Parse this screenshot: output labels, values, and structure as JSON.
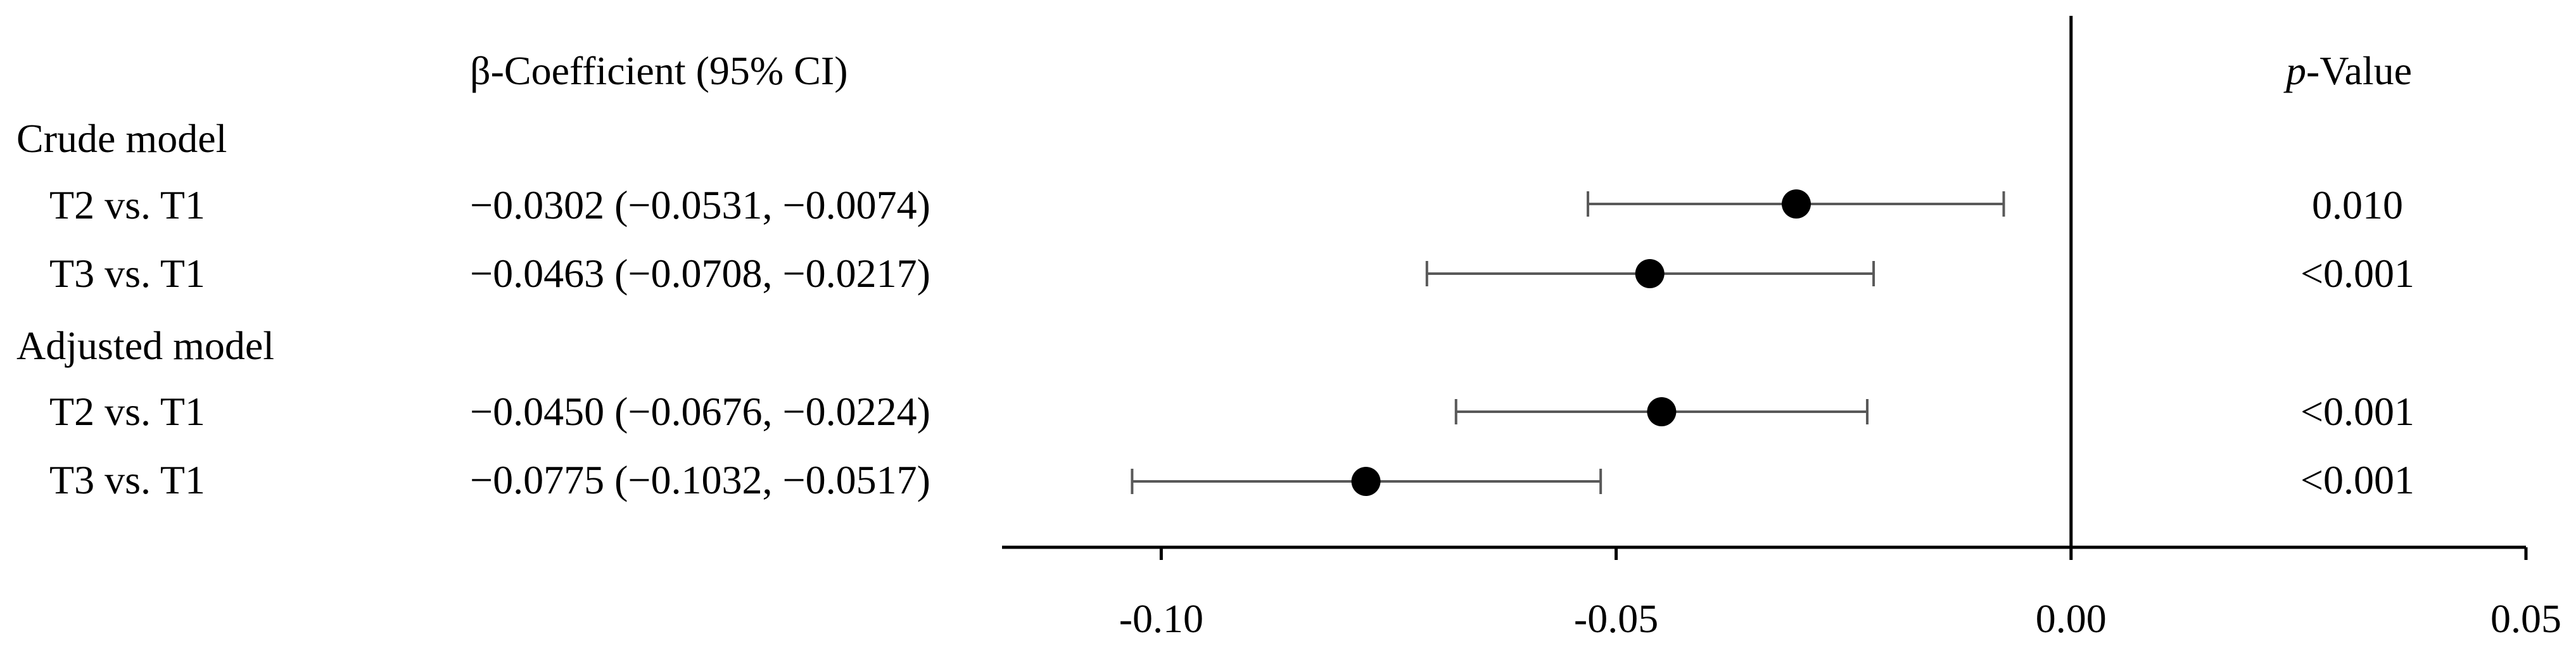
{
  "header": {
    "coef": "β-Coefficient (95% CI)",
    "p_prefix": "p",
    "p_suffix": "-Value"
  },
  "groups": [
    {
      "label": "Crude model"
    },
    {
      "label": "Adjusted model"
    }
  ],
  "rows": [
    {
      "label": "T2 vs. T1",
      "coef_text": "−0.0302 (−0.0531, −0.0074)",
      "p_text": "0.010"
    },
    {
      "label": "T3 vs. T1",
      "coef_text": "−0.0463 (−0.0708, −0.0217)",
      "p_text": "<0.001"
    },
    {
      "label": "T2 vs. T1",
      "coef_text": "−0.0450 (−0.0676, −0.0224)",
      "p_text": "<0.001"
    },
    {
      "label": "T3 vs. T1",
      "coef_text": "−0.0775 (−0.1032, −0.0517)",
      "p_text": "<0.001"
    }
  ],
  "chart_data": {
    "type": "scatter",
    "subtype": "forest",
    "categories": [
      "Crude model: T2 vs. T1",
      "Crude model: T3 vs. T1",
      "Adjusted model: T2 vs. T1",
      "Adjusted model: T3 vs. T1"
    ],
    "estimates": [
      -0.0302,
      -0.0463,
      -0.045,
      -0.0775
    ],
    "ci_lower": [
      -0.0531,
      -0.0708,
      -0.0676,
      -0.1032
    ],
    "ci_upper": [
      -0.0074,
      -0.0217,
      -0.0224,
      -0.0517
    ],
    "p_values": [
      "0.010",
      "<0.001",
      "<0.001",
      "<0.001"
    ],
    "xlim": [
      -0.1175,
      0.05
    ],
    "x_ticks": [
      -0.1,
      -0.05,
      0.0,
      0.05
    ],
    "x_tick_labels": [
      "-0.10",
      "-0.05",
      "0.00",
      "0.05"
    ],
    "reference_line": 0,
    "grid": false,
    "colors": {
      "point": "#000000",
      "ci": "#595959",
      "axis": "#000000"
    }
  }
}
